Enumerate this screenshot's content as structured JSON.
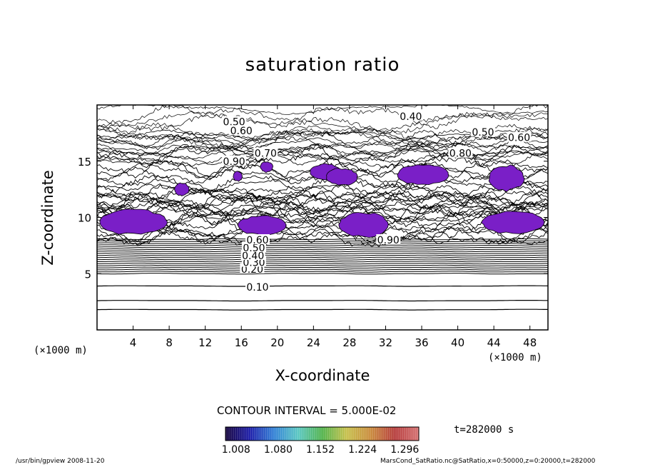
{
  "chart_data": {
    "type": "contour",
    "title": "saturation ratio",
    "xlabel": "X-coordinate",
    "ylabel": "Z-coordinate",
    "xunit_left": "(×1000 m)",
    "xunit_right": "(×1000 m)",
    "xlim": [
      0,
      50
    ],
    "ylim": [
      0,
      20
    ],
    "xticks": [
      "4",
      "8",
      "12",
      "16",
      "20",
      "24",
      "28",
      "32",
      "36",
      "40",
      "44",
      "48"
    ],
    "yticks": [
      "5",
      "10",
      "15"
    ],
    "xtick_values": [
      4,
      8,
      12,
      16,
      20,
      24,
      28,
      32,
      36,
      40,
      44,
      48
    ],
    "ytick_values": [
      5,
      10,
      15
    ],
    "contour_interval_label": "CONTOUR INTERVAL = 5.000E-02",
    "contour_labels": [
      {
        "text": "0.10",
        "x": 17.8,
        "z": 3.8
      },
      {
        "text": "0.20",
        "x": 17.2,
        "z": 5.4
      },
      {
        "text": "0.30",
        "x": 17.4,
        "z": 6.0
      },
      {
        "text": "0.40",
        "x": 17.3,
        "z": 6.6
      },
      {
        "text": "0.50",
        "x": 17.4,
        "z": 7.3
      },
      {
        "text": "0.60",
        "x": 17.8,
        "z": 8.0
      },
      {
        "text": "0.90",
        "x": 32.3,
        "z": 8.0
      },
      {
        "text": "0.40",
        "x": 34.8,
        "z": 19.0
      },
      {
        "text": "0.50",
        "x": 15.2,
        "z": 18.5
      },
      {
        "text": "0.60",
        "x": 16.0,
        "z": 17.7
      },
      {
        "text": "0.50",
        "x": 42.8,
        "z": 17.6
      },
      {
        "text": "0.60",
        "x": 46.8,
        "z": 17.1
      },
      {
        "text": "0.70",
        "x": 18.7,
        "z": 15.7
      },
      {
        "text": "0.90",
        "x": 15.2,
        "z": 15.0
      },
      {
        "text": "0.80",
        "x": 40.3,
        "z": 15.7
      }
    ],
    "supersaturated_regions": [
      {
        "x": [
          0.3,
          7.8
        ],
        "z": [
          8.4,
          10.8
        ]
      },
      {
        "x": [
          8.6,
          10.2
        ],
        "z": [
          11.9,
          13.1
        ]
      },
      {
        "x": [
          15.1,
          16.1
        ],
        "z": [
          13.2,
          14.1
        ]
      },
      {
        "x": [
          15.6,
          21.0
        ],
        "z": [
          8.4,
          10.2
        ]
      },
      {
        "x": [
          18.1,
          19.5
        ],
        "z": [
          14.0,
          15.0
        ]
      },
      {
        "x": [
          23.6,
          27.0
        ],
        "z": [
          13.3,
          14.8
        ]
      },
      {
        "x": [
          25.4,
          28.9
        ],
        "z": [
          12.8,
          14.4
        ]
      },
      {
        "x": [
          26.8,
          32.3
        ],
        "z": [
          8.2,
          10.5
        ]
      },
      {
        "x": [
          33.3,
          39.0
        ],
        "z": [
          12.8,
          14.8
        ]
      },
      {
        "x": [
          43.4,
          47.4
        ],
        "z": [
          12.3,
          14.7
        ]
      },
      {
        "x": [
          42.6,
          49.6
        ],
        "z": [
          8.5,
          10.6
        ]
      }
    ],
    "colorbar": {
      "ticks": [
        "1.008",
        "1.080",
        "1.152",
        "1.224",
        "1.296"
      ],
      "tick_values": [
        1.008,
        1.08,
        1.152,
        1.224,
        1.296
      ],
      "range": [
        0.99,
        1.32
      ],
      "colors": [
        "#12003a",
        "#1a1aa8",
        "#2f7fd6",
        "#58c7c2",
        "#4fb24a",
        "#c6c04a",
        "#c98a3a",
        "#b53a3a",
        "#d57070"
      ]
    },
    "time_label": "t=282000 s",
    "fill_color": "#7a1fc7"
  },
  "footer": {
    "left": "/usr/bin/gpview  2008-11-20",
    "right": "MarsCond_SatRatio.nc@SatRatio,x=0:50000,z=0:20000,t=282000"
  }
}
